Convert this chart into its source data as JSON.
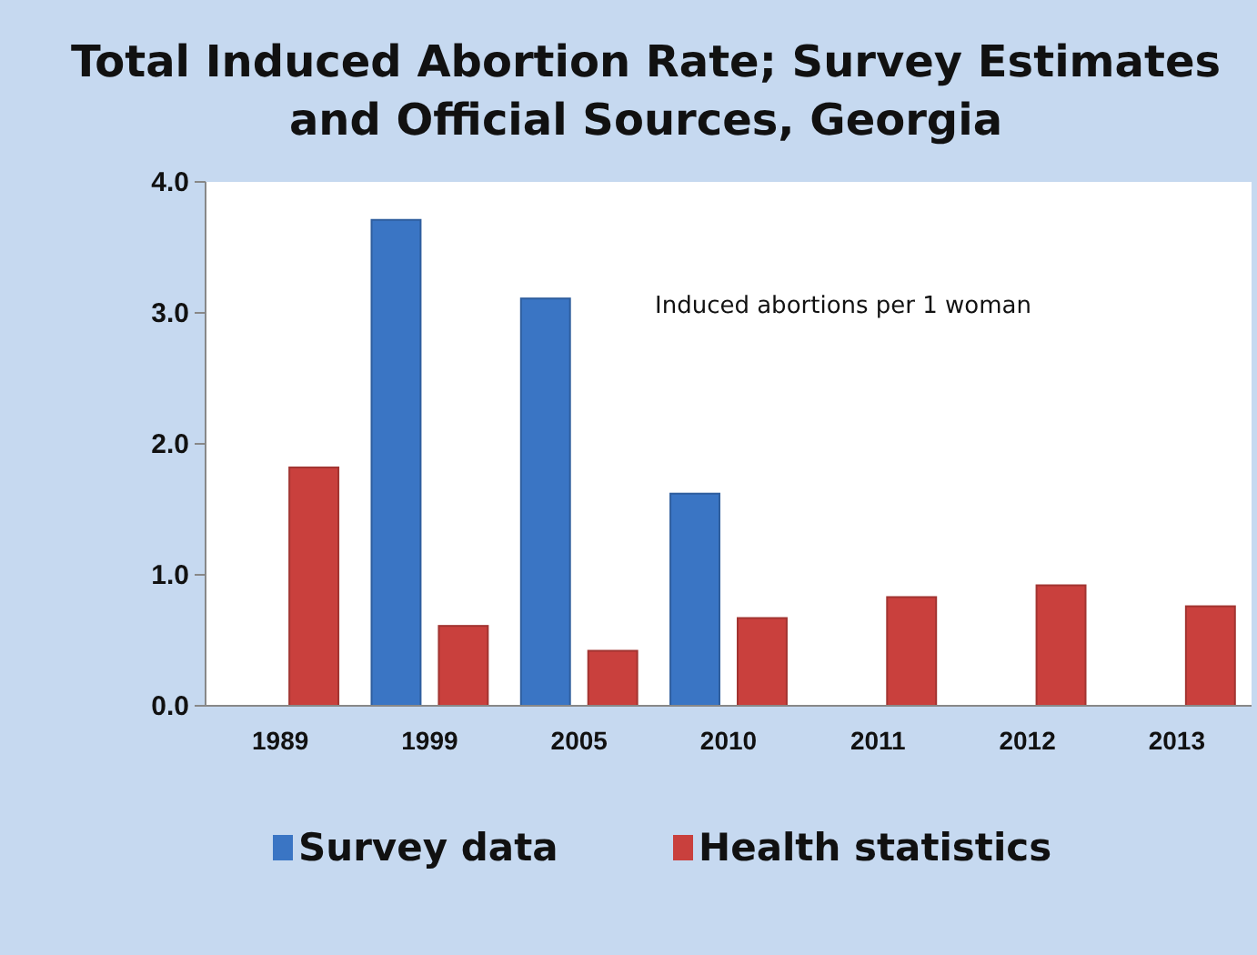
{
  "chart_data": {
    "type": "bar",
    "title": "Total Induced Abortion Rate; Survey Estimates and Official Sources, Georgia",
    "categories": [
      "1989",
      "1999",
      "2005",
      "2010",
      "2011",
      "2012",
      "2013"
    ],
    "series": [
      {
        "name": "Survey data",
        "color": "#3a75c4",
        "values": [
          null,
          3.71,
          3.11,
          1.62,
          null,
          null,
          null
        ]
      },
      {
        "name": "Health statistics",
        "color": "#c9403d",
        "values": [
          1.82,
          0.61,
          0.42,
          0.67,
          0.83,
          0.92,
          0.76
        ]
      }
    ],
    "ylim": [
      0,
      4
    ],
    "yticks": [
      {
        "value": 0,
        "label": "0.0"
      },
      {
        "value": 1,
        "label": "1.0"
      },
      {
        "value": 2,
        "label": "2.0"
      },
      {
        "value": 3,
        "label": "3.0"
      },
      {
        "value": 4,
        "label": "4.0"
      }
    ],
    "annotations": [
      "Induced abortions per 1 woman"
    ],
    "grid": false,
    "legend": "bottom"
  }
}
